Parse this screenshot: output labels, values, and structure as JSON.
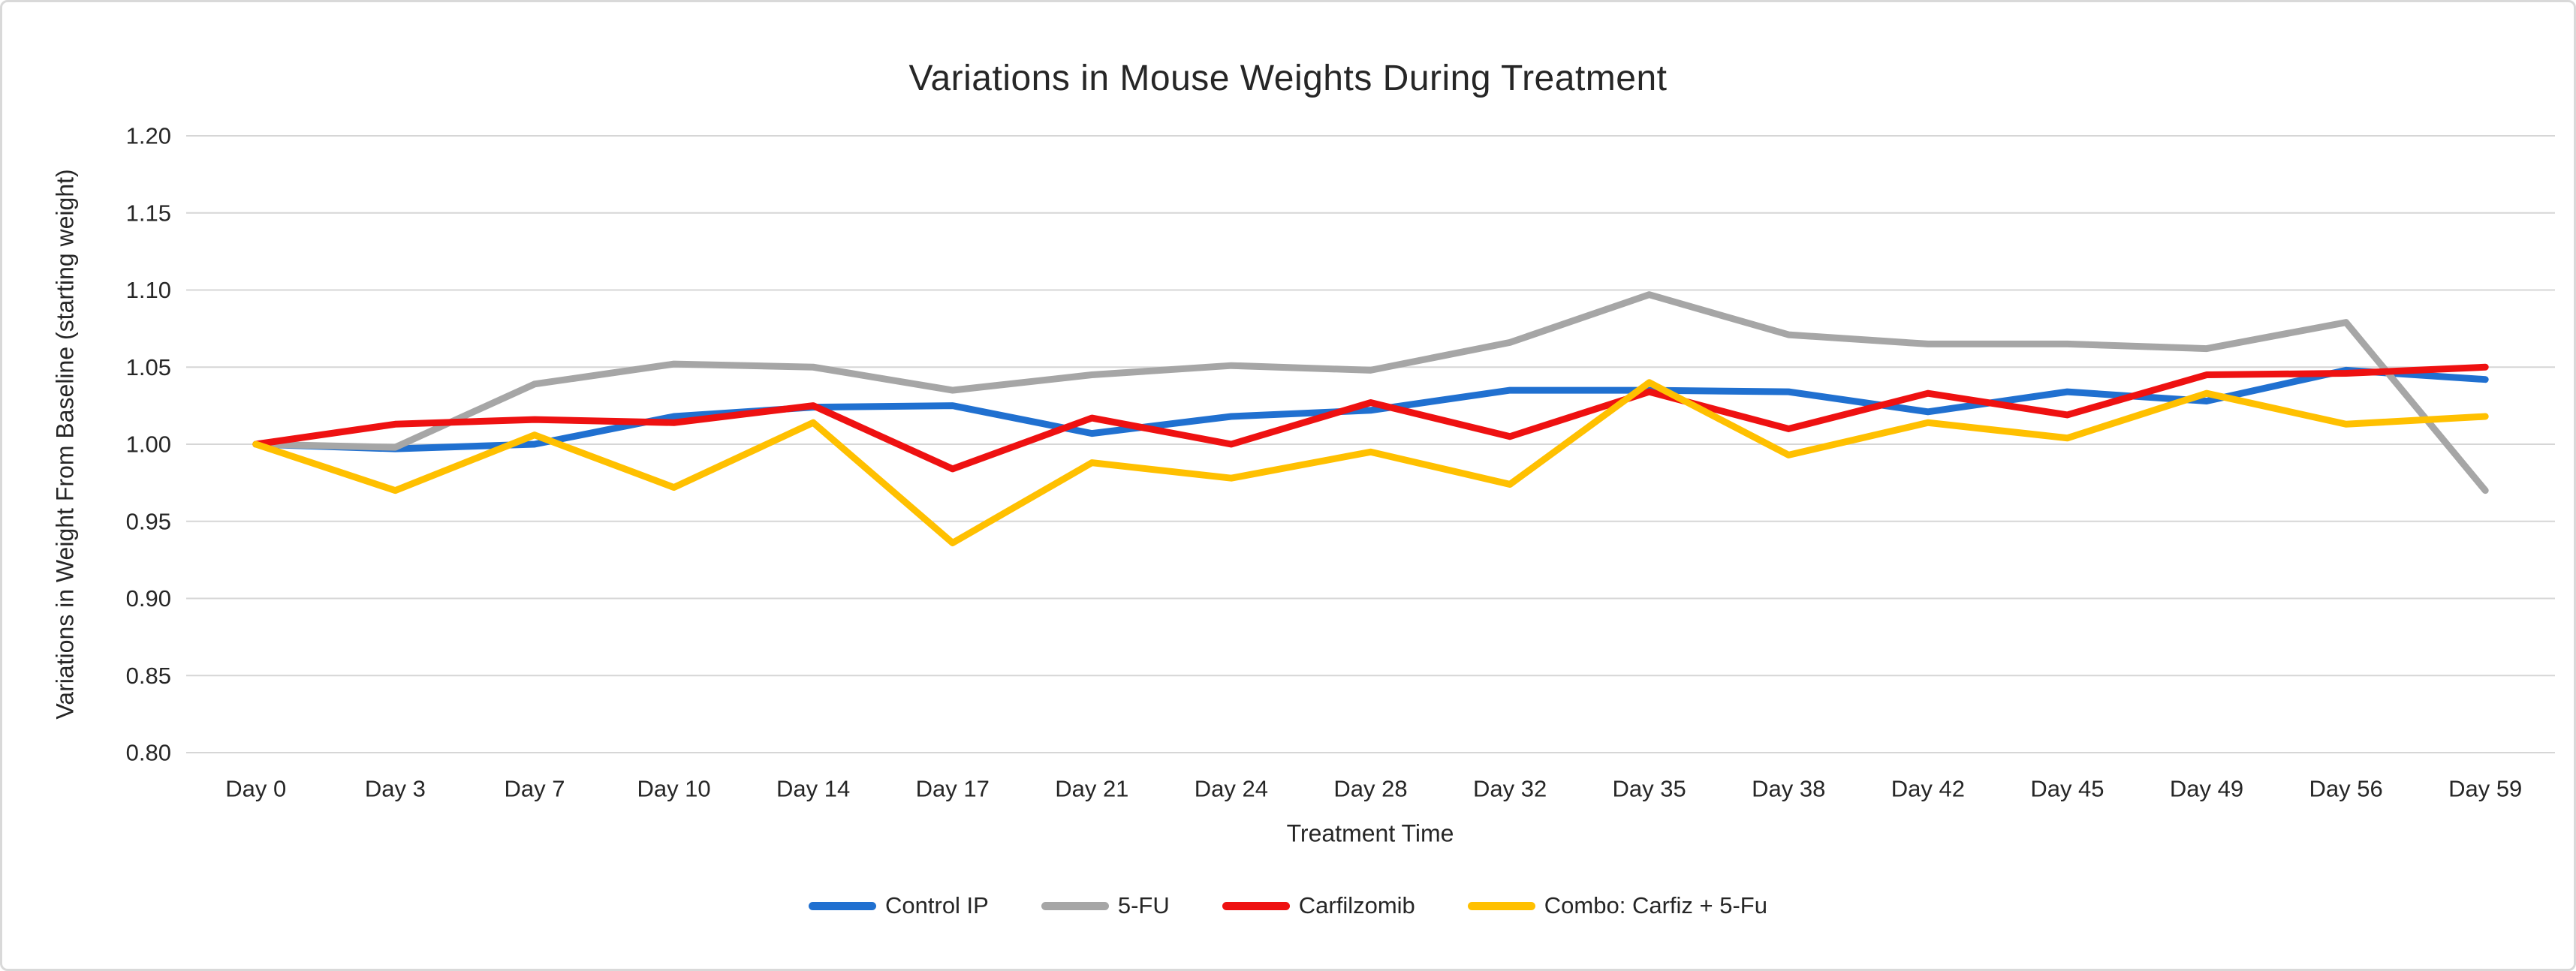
{
  "chart_data": {
    "type": "line",
    "title": "Variations in Mouse Weights During Treatment",
    "xlabel": "Treatment Time",
    "ylabel": "Variations in Weight From Baseline (starting weight)",
    "categories": [
      "Day 0",
      "Day 3",
      "Day 7",
      "Day 10",
      "Day 14",
      "Day 17",
      "Day 21",
      "Day 24",
      "Day 28",
      "Day 32",
      "Day 35",
      "Day 38",
      "Day 42",
      "Day 45",
      "Day 49",
      "Day 56",
      "Day 59"
    ],
    "ylim": [
      0.8,
      1.2
    ],
    "y_tick_step": 0.05,
    "y_tick_decimals": 2,
    "grid": "horizontal",
    "legend_position": "bottom",
    "series": [
      {
        "name": "Control IP",
        "color": "#2070d0",
        "values": [
          1.0,
          0.997,
          1.0,
          1.018,
          1.024,
          1.025,
          1.007,
          1.018,
          1.022,
          1.035,
          1.035,
          1.034,
          1.021,
          1.034,
          1.028,
          1.048,
          1.042
        ]
      },
      {
        "name": "5-FU",
        "color": "#a6a6a6",
        "values": [
          1.0,
          0.998,
          1.039,
          1.052,
          1.05,
          1.035,
          1.045,
          1.051,
          1.048,
          1.066,
          1.097,
          1.071,
          1.065,
          1.065,
          1.062,
          1.079,
          0.97
        ]
      },
      {
        "name": "Carfilzomib",
        "color": "#ee1111",
        "values": [
          1.0,
          1.013,
          1.016,
          1.014,
          1.025,
          0.984,
          1.017,
          1.0,
          1.027,
          1.005,
          1.034,
          1.01,
          1.033,
          1.019,
          1.045,
          1.046,
          1.05
        ]
      },
      {
        "name": "Combo: Carfiz + 5-Fu",
        "color": "#ffc000",
        "values": [
          1.0,
          0.97,
          1.006,
          0.972,
          1.014,
          0.936,
          0.988,
          0.978,
          0.995,
          0.974,
          1.04,
          0.993,
          1.014,
          1.004,
          1.033,
          1.013,
          1.018
        ]
      }
    ],
    "colors": {
      "text": "#262626",
      "grid": "#d6d6d6",
      "border": "#d9d9d9",
      "background": "#ffffff"
    }
  }
}
